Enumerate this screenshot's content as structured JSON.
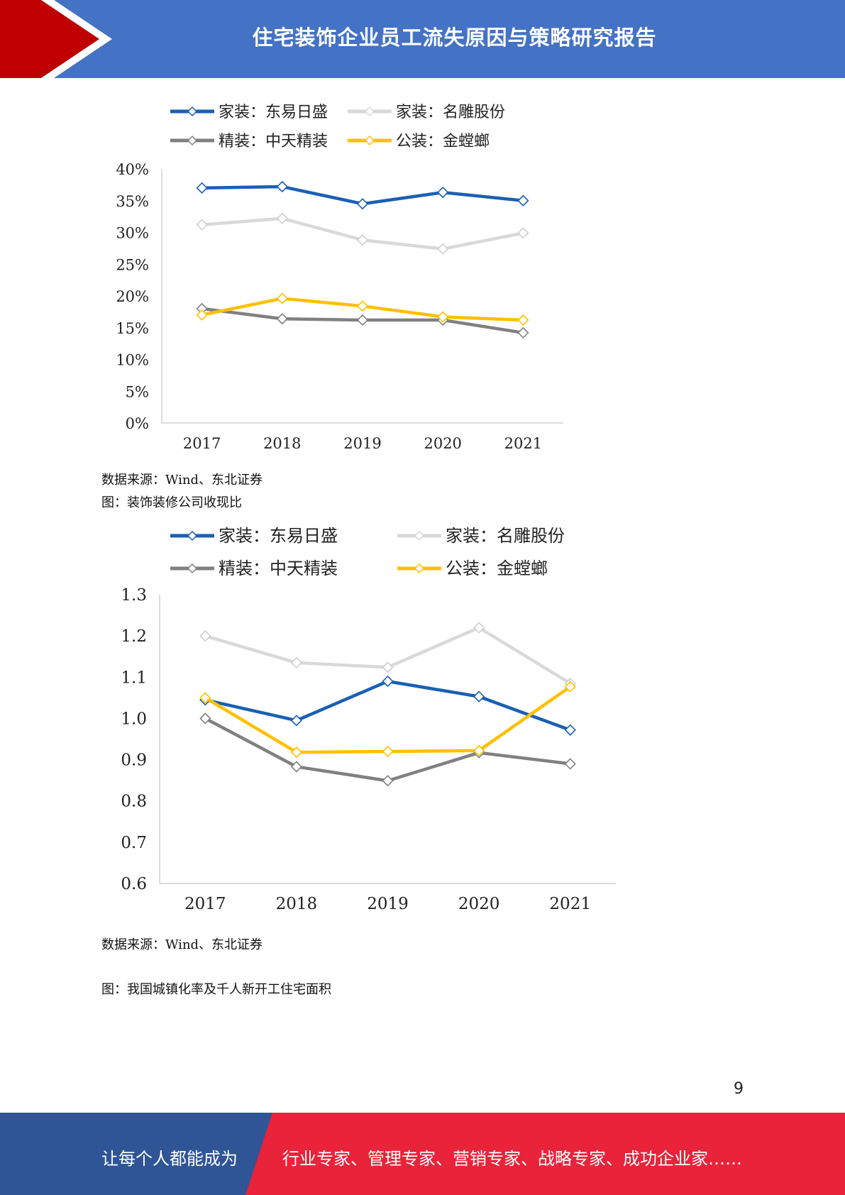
{
  "header": {
    "title": "住宅装饰企业员工流失原因与策略研究报告",
    "band_color": "#4472c4",
    "arrow_color": "#c00000"
  },
  "charts": [
    {
      "source": "数据来源：Wind、东北证券",
      "chart_data": {
        "type": "line",
        "title": "",
        "categories": [
          "2017",
          "2018",
          "2019",
          "2020",
          "2021"
        ],
        "ylim": [
          0,
          40
        ],
        "yticks": [
          "0%",
          "5%",
          "10%",
          "15%",
          "20%",
          "25%",
          "30%",
          "35%",
          "40%"
        ],
        "ytick_values": [
          0,
          5,
          10,
          15,
          20,
          25,
          30,
          35,
          40
        ],
        "legend_position": "top",
        "grid": false,
        "series": [
          {
            "name": "家装：东易日盛",
            "color": "#1a5fb4",
            "values": [
              37.0,
              37.2,
              34.5,
              36.3,
              35.0
            ]
          },
          {
            "name": "家装：名雕股份",
            "color": "#d9d9d9",
            "values": [
              31.2,
              32.2,
              28.8,
              27.4,
              29.9
            ]
          },
          {
            "name": "精装：中天精装",
            "color": "#808080",
            "values": [
              18.0,
              16.4,
              16.2,
              16.2,
              14.2
            ]
          },
          {
            "name": "公装：金螳螂",
            "color": "#ffc000",
            "values": [
              17.0,
              19.6,
              18.4,
              16.7,
              16.2
            ]
          }
        ]
      }
    },
    {
      "caption": "图：装饰装修公司收现比",
      "source": "数据来源：Wind、东北证券",
      "chart_data": {
        "type": "line",
        "title": "",
        "categories": [
          "2017",
          "2018",
          "2019",
          "2020",
          "2021"
        ],
        "ylim": [
          0.6,
          1.3
        ],
        "yticks": [
          "0.6",
          "0.7",
          "0.8",
          "0.9",
          "1.0",
          "1.1",
          "1.2",
          "1.3"
        ],
        "ytick_values": [
          0.6,
          0.7,
          0.8,
          0.9,
          1.0,
          1.1,
          1.2,
          1.3
        ],
        "legend_position": "top",
        "grid": false,
        "series": [
          {
            "name": "家装：东易日盛",
            "color": "#1a5fb4",
            "values": [
              1.045,
              0.995,
              1.09,
              1.053,
              0.972
            ]
          },
          {
            "name": "家装：名雕股份",
            "color": "#d9d9d9",
            "values": [
              1.2,
              1.135,
              1.124,
              1.22,
              1.085
            ]
          },
          {
            "name": "精装：中天精装",
            "color": "#808080",
            "values": [
              1.0,
              0.883,
              0.849,
              0.917,
              0.89
            ]
          },
          {
            "name": "公装：金螳螂",
            "color": "#ffc000",
            "values": [
              1.05,
              0.918,
              0.92,
              0.922,
              1.077
            ]
          }
        ]
      }
    }
  ],
  "next_caption": "图：我国城镇化率及千人新开工住宅面积",
  "page_number": "9",
  "footer": {
    "left_text": "让每个人都能成为",
    "right_text": "行业专家、管理专家、营销专家、战略专家、成功企业家……",
    "left_color": "#2f5597",
    "right_color": "#e8233a"
  }
}
